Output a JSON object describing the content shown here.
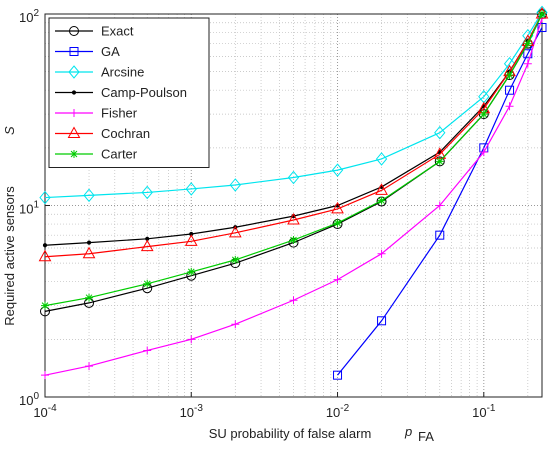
{
  "chart_data": {
    "type": "line",
    "xlabel": "SU probability of false alarm",
    "xlabel_symbol": "p",
    "xlabel_symbol_sub": "FA",
    "ylabel": "Required active sensors",
    "ylabel_symbol": "S",
    "xscale": "log",
    "yscale": "log",
    "grid": true,
    "legend": "upper left",
    "x": [
      0.0001,
      0.0002,
      0.0005,
      0.001,
      0.002,
      0.005,
      0.01,
      0.02,
      0.05,
      0.1,
      0.15,
      0.2,
      0.25
    ],
    "xlim": [
      0.0001,
      0.25
    ],
    "ylim": [
      1,
      100
    ],
    "xticks": [
      {
        "value": 0.0001,
        "label": "10",
        "exponent": "-4"
      },
      {
        "value": 0.001,
        "label": "10",
        "exponent": "-3"
      },
      {
        "value": 0.01,
        "label": "10",
        "exponent": "-2"
      },
      {
        "value": 0.1,
        "label": "10",
        "exponent": "-1"
      }
    ],
    "yticks": [
      {
        "value": 1,
        "label": "10",
        "exponent": "0"
      },
      {
        "value": 10,
        "label": "10",
        "exponent": "1"
      },
      {
        "value": 100,
        "label": "10",
        "exponent": "2"
      }
    ],
    "series": [
      {
        "name": "Exact",
        "color": "#000000",
        "marker": "circle",
        "values": [
          2.8,
          3.1,
          3.7,
          4.3,
          5.0,
          6.4,
          8.0,
          10.5,
          17,
          30,
          48,
          70,
          100
        ]
      },
      {
        "name": "GA",
        "color": "#0000ff",
        "marker": "square",
        "values": [
          null,
          null,
          null,
          null,
          null,
          null,
          1.3,
          2.5,
          7,
          20,
          40,
          62,
          85
        ]
      },
      {
        "name": "Arcsine",
        "color": "#00e5ee",
        "marker": "diamond",
        "values": [
          11,
          11.3,
          11.7,
          12.2,
          12.8,
          14,
          15.3,
          17.5,
          24,
          37,
          55,
          77,
          102
        ]
      },
      {
        "name": "Camp-Poulson",
        "color": "#000000",
        "marker": "dot",
        "values": [
          6.2,
          6.4,
          6.7,
          7.1,
          7.7,
          8.8,
          10,
          12.5,
          19,
          33,
          50,
          72,
          100
        ]
      },
      {
        "name": "Fisher",
        "color": "#ff00ff",
        "marker": "plus",
        "values": [
          1.3,
          1.45,
          1.75,
          2.0,
          2.4,
          3.2,
          4.1,
          5.6,
          10,
          19,
          33,
          55,
          95
        ]
      },
      {
        "name": "Cochran",
        "color": "#ff0000",
        "marker": "triangle",
        "values": [
          5.4,
          5.6,
          6.1,
          6.5,
          7.2,
          8.4,
          9.6,
          12,
          18.5,
          32,
          50,
          72,
          100
        ]
      },
      {
        "name": "Carter",
        "color": "#00cc00",
        "marker": "star",
        "values": [
          3.0,
          3.3,
          3.9,
          4.5,
          5.2,
          6.6,
          8.1,
          10.6,
          17,
          30,
          48,
          70,
          100
        ]
      }
    ]
  }
}
